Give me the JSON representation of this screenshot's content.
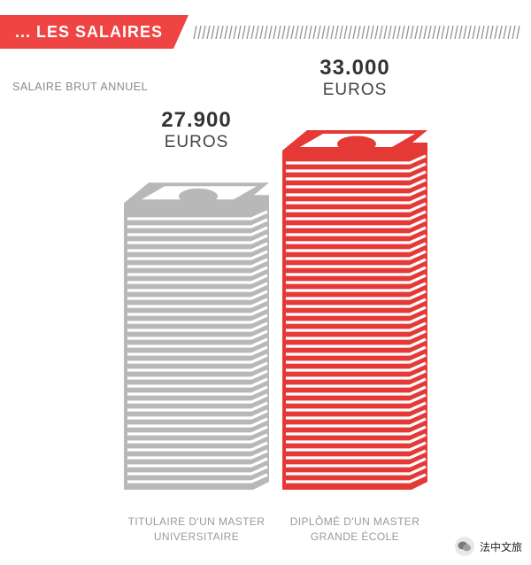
{
  "header": {
    "title": "... LES SALAIRES",
    "accent_color": "#ef4444"
  },
  "subtitle": "SALAIRE BRUT ANNUEL",
  "colors": {
    "gray_bar": "#b8b8b8",
    "red_bar": "#e53935",
    "text_dark": "#333333"
  },
  "chart_data": {
    "type": "bar",
    "title": "... LES SALAIRES",
    "subtitle": "SALAIRE BRUT ANNUEL",
    "categories": [
      "TITULAIRE D'UN MASTER UNIVERSITAIRE",
      "DIPLÔMÉ D'UN MASTER GRANDE ÉCOLE"
    ],
    "values": [
      27900,
      33000
    ],
    "value_labels": [
      "27.900",
      "33.000"
    ],
    "unit": "EUROS",
    "colors": [
      "#b8b8b8",
      "#e53935"
    ],
    "category_lines": [
      [
        "TITULAIRE D'UN MASTER",
        "UNIVERSITAIRE"
      ],
      [
        "DIPLÔMÉ D'UN MASTER",
        "GRANDE ÉCOLE"
      ]
    ]
  },
  "watermark": {
    "icon": "wechat-icon",
    "text": "法中文旅"
  }
}
